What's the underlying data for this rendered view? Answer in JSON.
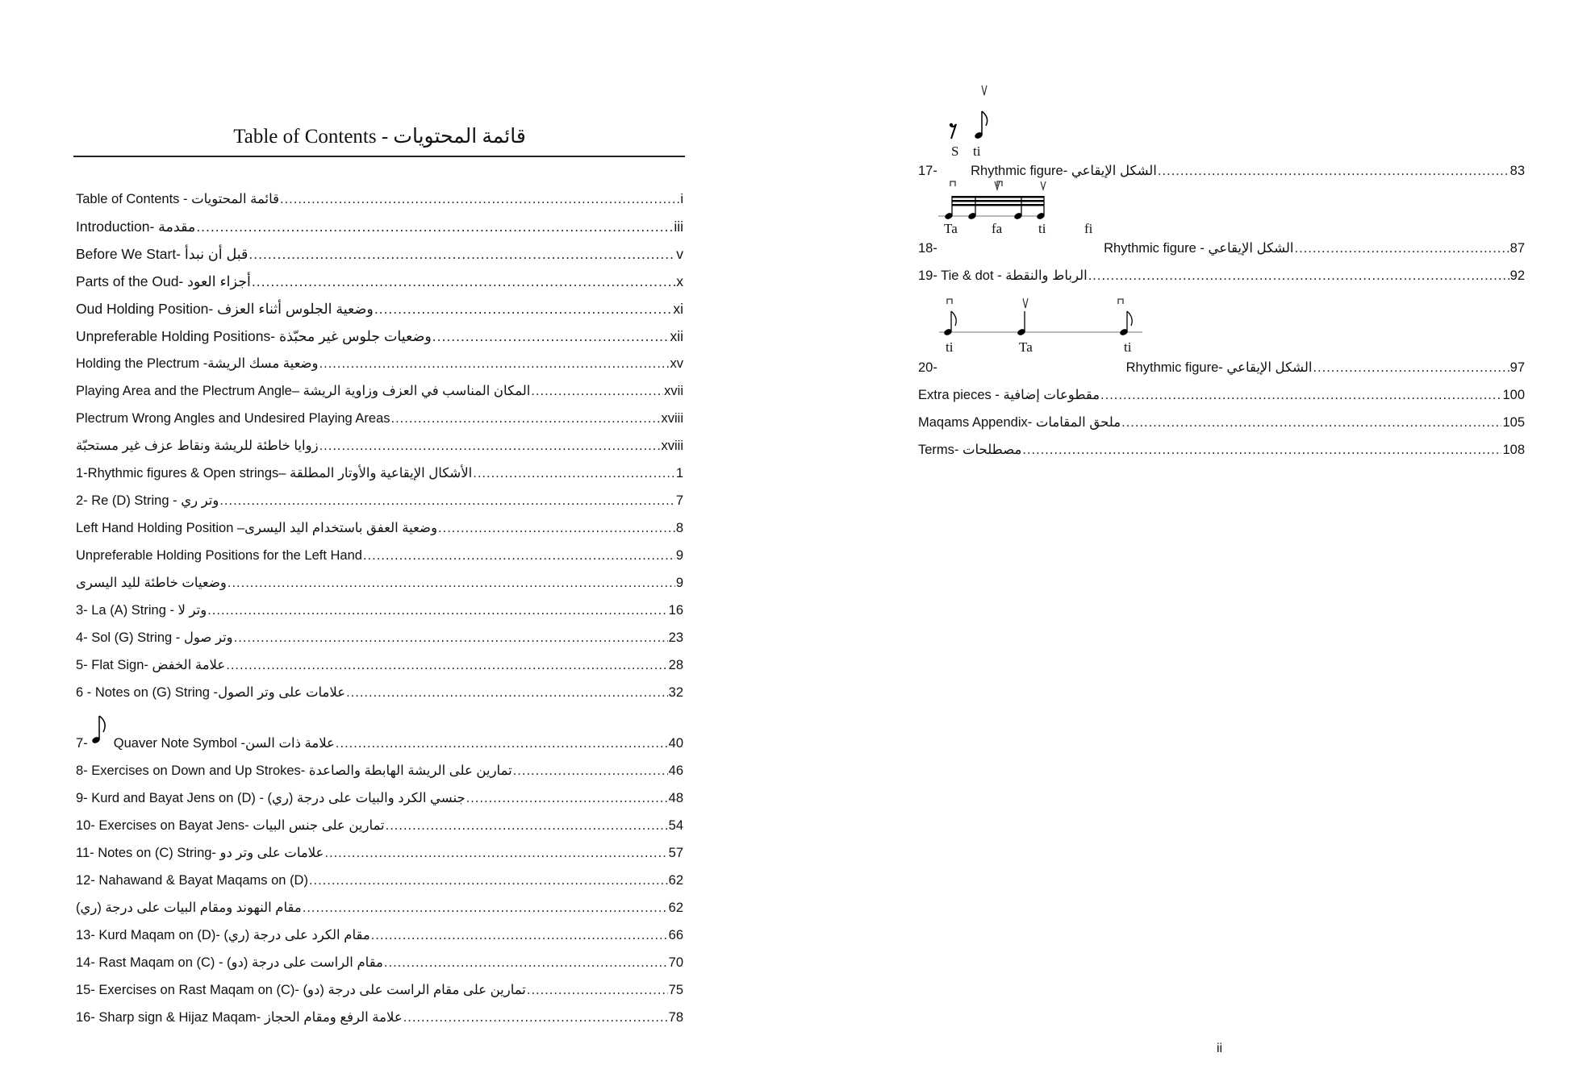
{
  "title": "Table of Contents - قائمة المحتويات",
  "left_entries": [
    {
      "label": "Table of Contents - قائمة المحتويات",
      "page": "i"
    },
    {
      "label": "Introduction- مقدمة",
      "page": "iii"
    },
    {
      "label": "Before We Start- قبل أن نبدأ",
      "page": "v"
    },
    {
      "label": "Parts of the Oud- أجزاء العود",
      "page": "x"
    },
    {
      "label": "Oud Holding Position- وضعية الجلوس أثناء العزف",
      "page": "xi"
    },
    {
      "label": "Unpreferable Holding Positions- وضعيات جلوس غير محبّذة",
      "page": "xii"
    },
    {
      "label": "Holding the Plectrum -وضعية مسك الريشة",
      "page": "xv"
    },
    {
      "label": "Playing Area and the Plectrum Angle– المكان المناسب في العزف وزاوية الريشة",
      "page": "xvii"
    },
    {
      "label": "Plectrum Wrong Angles and Undesired Playing Areas",
      "page": "xviii"
    },
    {
      "label": "زوايا خاطئة للريشة ونقاط عزف غير مستحبّة",
      "page": "xviii"
    },
    {
      "label": "1-Rhythmic figures & Open strings– الأشكال الإيقاعية والأوتار المطلقة",
      "page": "1"
    },
    {
      "label": "2- Re (D) String - وتر ري",
      "page": "7"
    },
    {
      "label": "Left Hand Holding Position –وضعية العفق باستخدام اليد اليسرى",
      "page": "8"
    },
    {
      "label": "Unpreferable Holding Positions for the Left Hand",
      "page": "9"
    },
    {
      "label": "وضعيات خاطئة لليد اليسرى",
      "page": "9"
    },
    {
      "label": "3- La (A) String - وتر لا",
      "page": "16"
    },
    {
      "label": "4- Sol (G) String - وتر صول",
      "page": "23"
    },
    {
      "label": "5- Flat Sign- علامة الخفض",
      "page": "28"
    },
    {
      "label": "6 - Notes on (G) String -علامات على وتر الصول",
      "page": "32"
    },
    {
      "label": "7-       Quaver Note Symbol -علامة ذات السن",
      "page": "40"
    },
    {
      "label": "8- Exercises on Down and Up Strokes- تمارين على الريشة الهابطة والصاعدة",
      "page": "46"
    },
    {
      "label": "9- Kurd and Bayat Jens on (D) - (ري) جنسي الكرد والبيات على درجة",
      "page": "48"
    },
    {
      "label": "10- Exercises on Bayat Jens- تمارين على جنس البيات",
      "page": "54"
    },
    {
      "label": "11- Notes on (C) String- علامات على وتر دو",
      "page": "57"
    },
    {
      "label": "12- Nahawand & Bayat Maqams on (D)",
      "page": "62"
    },
    {
      "label": "مقام النهوند ومقام البيات على درجة (ري)",
      "page": "62"
    },
    {
      "label": "13- Kurd Maqam on (D)- (ري) مقام الكرد على درجة",
      "page": "66"
    },
    {
      "label": "14- Rast Maqam on (C) - (دو) مقام الراست على درجة",
      "page": "70"
    },
    {
      "label": "15- Exercises on Rast Maqam on (C)- (دو) تمارين على مقام الراست على درجة",
      "page": "75"
    },
    {
      "label": "16- Sharp sign & Hijaz Maqam- علامة الرفع ومقام الحجاز",
      "page": "78"
    }
  ],
  "right_entries": [
    {
      "label": "17-         Rhythmic figure- الشكل الإيقاعي",
      "page": "83"
    },
    {
      "label": "18-                                             Rhythmic figure - الشكل الإيقاعي",
      "page": "87"
    },
    {
      "label": "19- Tie & dot - الرباط والنقطة",
      "page": "92"
    },
    {
      "label": "20-                                                   Rhythmic figure- الشكل الإيقاعي",
      "page": "97"
    },
    {
      "label": "Extra pieces - مقطوعات إضافية",
      "page": "100"
    },
    {
      "label": "Maqams Appendix- ملحق المقامات",
      "page": "105"
    },
    {
      "label": "Terms- مصطلحات",
      "page": "108"
    }
  ],
  "syllables": {
    "fig17": [
      "S",
      "ti"
    ],
    "fig18": [
      "Ta",
      "fa",
      "ti",
      "fi"
    ],
    "fig20": [
      "ti",
      "Ta",
      "ti"
    ]
  },
  "page_number": "ii"
}
